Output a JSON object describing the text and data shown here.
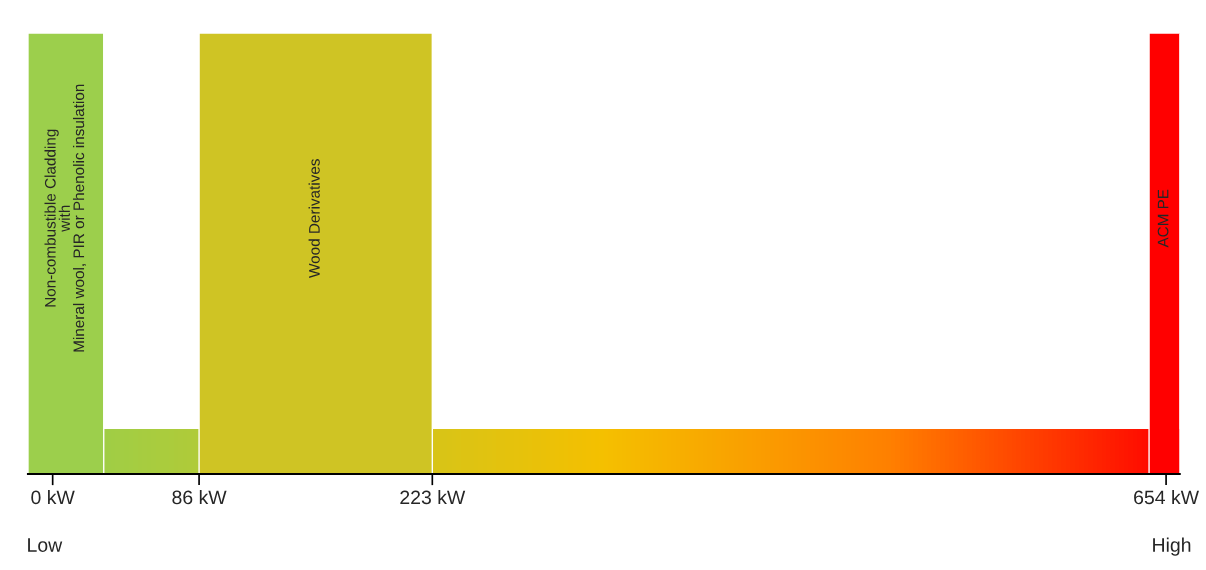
{
  "chart_data": {
    "type": "bar",
    "orientation": "horizontal",
    "categories": [
      null
    ],
    "xlim": [
      -14.5,
      662
    ],
    "xticks": [
      {
        "value": 0,
        "label": "0 kW"
      },
      {
        "value": 86,
        "label": "86 kW"
      },
      {
        "value": 223,
        "label": "223 kW"
      },
      {
        "value": 654,
        "label": "654 kW"
      }
    ],
    "series": [
      {
        "name": "Non-combustible Cladding\nwith\nMineral wool, PIR or Phenolic insulation",
        "color": "#9ccf4c",
        "base": [
          -14.5
        ],
        "values": [
          44.5
        ]
      },
      {
        "name": "Wood Derivatives",
        "color": "#cfc424",
        "base": [
          86
        ],
        "values": [
          137
        ]
      },
      {
        "name": "ACM PE",
        "color": "#ff0000",
        "base": [
          644
        ],
        "values": [
          18
        ]
      }
    ],
    "annotations": [
      "Low",
      "High"
    ]
  }
}
